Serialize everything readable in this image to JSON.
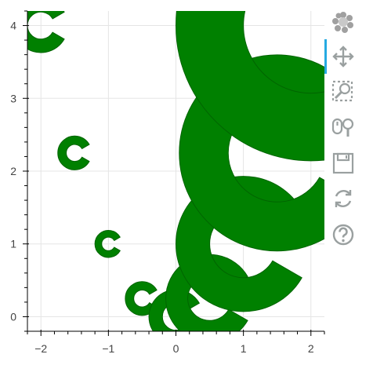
{
  "chart_data": {
    "type": "scatter",
    "marker": "annular_wedge",
    "title": "",
    "xlabel": "",
    "ylabel": "",
    "xlim": [
      -2.2,
      2.2
    ],
    "ylim": [
      -0.2,
      4.2
    ],
    "xticks": [
      -2,
      -1,
      0,
      1,
      2
    ],
    "yticks": [
      0,
      1,
      2,
      3,
      4
    ],
    "x": [
      -2.0,
      -1.5,
      -1.0,
      -0.5,
      0.0,
      0.5,
      1.0,
      1.5,
      2.0
    ],
    "y": [
      4.0,
      2.25,
      1.0,
      0.25,
      0.0,
      0.25,
      1.0,
      2.25,
      4.0
    ],
    "inner_radius": [
      0.2,
      0.125,
      0.1,
      0.125,
      0.2,
      0.325,
      0.5,
      0.725,
      1.0
    ],
    "outer_radius": [
      0.4,
      0.25,
      0.2,
      0.25,
      0.4,
      0.65,
      1.0,
      1.45,
      2.0
    ],
    "fill_color": "#008000",
    "line_color": "#006400",
    "grid": true
  },
  "toolbar": {
    "tools": [
      {
        "name": "bokeh-logo-icon",
        "active": false
      },
      {
        "name": "pan-icon",
        "active": true
      },
      {
        "name": "box-zoom-icon",
        "active": false
      },
      {
        "name": "wheel-zoom-icon",
        "active": false
      },
      {
        "name": "save-icon",
        "active": false
      },
      {
        "name": "reset-icon",
        "active": false
      },
      {
        "name": "help-icon",
        "active": false
      }
    ]
  }
}
